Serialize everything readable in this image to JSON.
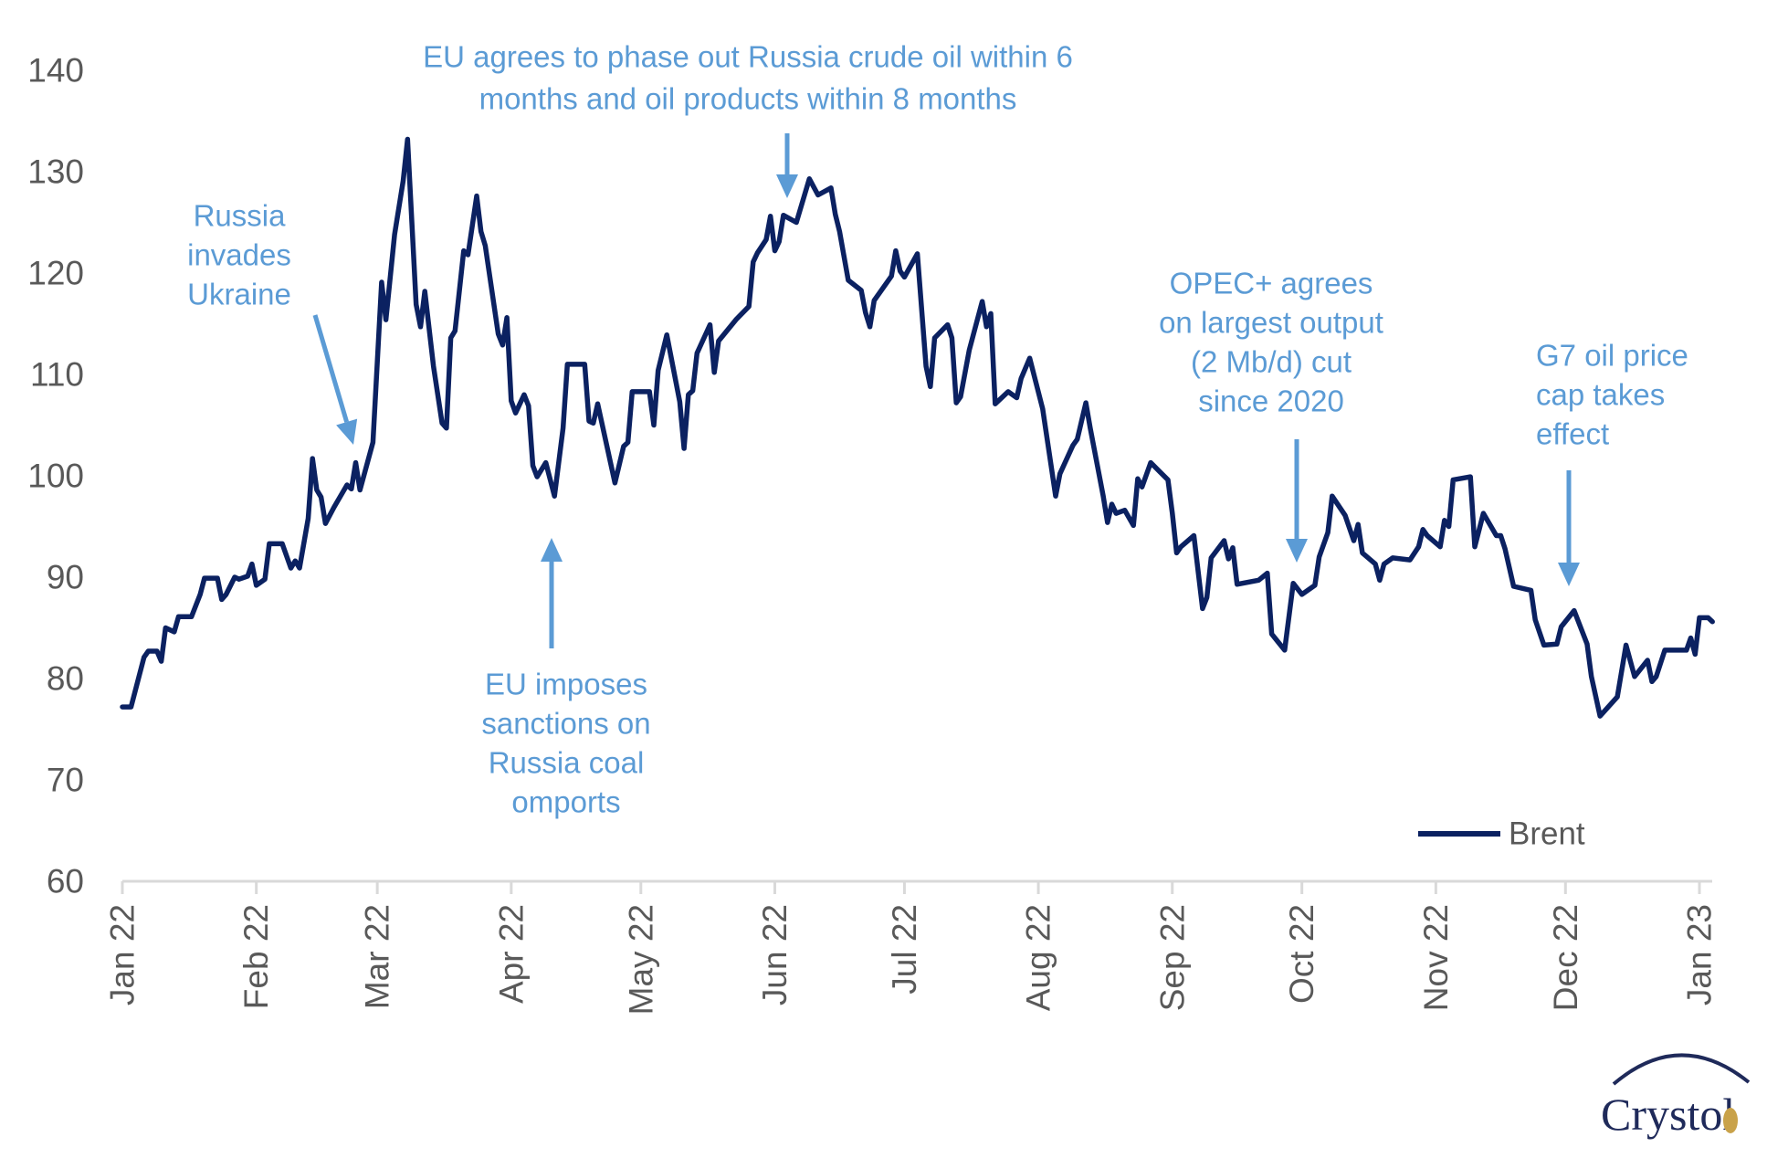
{
  "chart_data": {
    "type": "line",
    "title": "",
    "xlabel": "",
    "ylabel": "",
    "ylim": [
      60,
      140
    ],
    "yticks": [
      "60",
      "70",
      "80",
      "90",
      "100",
      "110",
      "120",
      "130",
      "140"
    ],
    "xlim": [
      "2022-01-01",
      "2023-01-01"
    ],
    "xticks": [
      {
        "date": "2022-01-01",
        "label": "Jan 22"
      },
      {
        "date": "2022-02-01",
        "label": "Feb 22"
      },
      {
        "date": "2022-03-01",
        "label": "Mar 22"
      },
      {
        "date": "2022-04-01",
        "label": "Apr 22"
      },
      {
        "date": "2022-05-01",
        "label": "May 22"
      },
      {
        "date": "2022-06-01",
        "label": "Jun 22"
      },
      {
        "date": "2022-07-01",
        "label": "Jul 22"
      },
      {
        "date": "2022-08-01",
        "label": "Aug 22"
      },
      {
        "date": "2022-09-01",
        "label": "Sep 22"
      },
      {
        "date": "2022-10-01",
        "label": "Oct 22"
      },
      {
        "date": "2022-11-01",
        "label": "Nov 22"
      },
      {
        "date": "2022-12-01",
        "label": "Dec 22"
      },
      {
        "date": "2023-01-01",
        "label": "Jan 23"
      }
    ],
    "grid": false,
    "legend": {
      "placement": "bottom-right",
      "entries": [
        "Brent"
      ]
    },
    "series": [
      {
        "name": "Brent",
        "color": "#0b2161",
        "points": [
          [
            "2022-01-01",
            77.2
          ],
          [
            "2022-01-03",
            77.2
          ],
          [
            "2022-01-06",
            82.1
          ],
          [
            "2022-01-07",
            82.7
          ],
          [
            "2022-01-09",
            82.7
          ],
          [
            "2022-01-10",
            81.7
          ],
          [
            "2022-01-11",
            85.0
          ],
          [
            "2022-01-13",
            84.6
          ],
          [
            "2022-01-14",
            86.1
          ],
          [
            "2022-01-17",
            86.1
          ],
          [
            "2022-01-19",
            88.3
          ],
          [
            "2022-01-20",
            89.9
          ],
          [
            "2022-01-23",
            89.9
          ],
          [
            "2022-01-24",
            87.8
          ],
          [
            "2022-01-25",
            88.3
          ],
          [
            "2022-01-27",
            90.0
          ],
          [
            "2022-01-28",
            89.8
          ],
          [
            "2022-01-30",
            90.1
          ],
          [
            "2022-01-31",
            91.3
          ],
          [
            "2022-02-01",
            89.2
          ],
          [
            "2022-02-03",
            89.8
          ],
          [
            "2022-02-04",
            93.3
          ],
          [
            "2022-02-07",
            93.3
          ],
          [
            "2022-02-09",
            90.9
          ],
          [
            "2022-02-10",
            91.6
          ],
          [
            "2022-02-11",
            90.9
          ],
          [
            "2022-02-13",
            95.8
          ],
          [
            "2022-02-14",
            101.7
          ],
          [
            "2022-02-15",
            98.6
          ],
          [
            "2022-02-16",
            97.9
          ],
          [
            "2022-02-17",
            95.3
          ],
          [
            "2022-02-19",
            96.9
          ],
          [
            "2022-02-22",
            99.1
          ],
          [
            "2022-02-23",
            98.7
          ],
          [
            "2022-02-24",
            101.3
          ],
          [
            "2022-02-25",
            98.6
          ],
          [
            "2022-02-28",
            103.3
          ],
          [
            "2022-03-02",
            119.1
          ],
          [
            "2022-03-03",
            115.4
          ],
          [
            "2022-03-05",
            123.8
          ],
          [
            "2022-03-07",
            129.1
          ],
          [
            "2022-03-08",
            133.2
          ],
          [
            "2022-03-10",
            116.9
          ],
          [
            "2022-03-11",
            114.7
          ],
          [
            "2022-03-12",
            118.2
          ],
          [
            "2022-03-14",
            110.8
          ],
          [
            "2022-03-16",
            105.2
          ],
          [
            "2022-03-17",
            104.7
          ],
          [
            "2022-03-18",
            113.6
          ],
          [
            "2022-03-19",
            114.3
          ],
          [
            "2022-03-21",
            122.2
          ],
          [
            "2022-03-22",
            121.8
          ],
          [
            "2022-03-24",
            127.6
          ],
          [
            "2022-03-25",
            124.1
          ],
          [
            "2022-03-26",
            122.7
          ],
          [
            "2022-03-29",
            114.0
          ],
          [
            "2022-03-30",
            112.9
          ],
          [
            "2022-03-31",
            115.6
          ],
          [
            "2022-04-01",
            107.4
          ],
          [
            "2022-04-02",
            106.2
          ],
          [
            "2022-04-04",
            108.0
          ],
          [
            "2022-04-05",
            106.9
          ],
          [
            "2022-04-06",
            101.0
          ],
          [
            "2022-04-07",
            99.9
          ],
          [
            "2022-04-09",
            101.3
          ],
          [
            "2022-04-11",
            98.0
          ],
          [
            "2022-04-13",
            104.7
          ],
          [
            "2022-04-14",
            111.0
          ],
          [
            "2022-04-18",
            111.0
          ],
          [
            "2022-04-19",
            105.4
          ],
          [
            "2022-04-20",
            105.2
          ],
          [
            "2022-04-21",
            107.1
          ],
          [
            "2022-04-25",
            99.3
          ],
          [
            "2022-04-27",
            102.9
          ],
          [
            "2022-04-28",
            103.3
          ],
          [
            "2022-04-29",
            108.3
          ],
          [
            "2022-05-03",
            108.3
          ],
          [
            "2022-05-04",
            105.0
          ],
          [
            "2022-05-05",
            110.4
          ],
          [
            "2022-05-07",
            113.9
          ],
          [
            "2022-05-10",
            107.3
          ],
          [
            "2022-05-11",
            102.7
          ],
          [
            "2022-05-12",
            108.0
          ],
          [
            "2022-05-13",
            108.4
          ],
          [
            "2022-05-14",
            112.1
          ],
          [
            "2022-05-17",
            114.9
          ],
          [
            "2022-05-18",
            110.2
          ],
          [
            "2022-05-19",
            113.3
          ],
          [
            "2022-05-23",
            115.4
          ],
          [
            "2022-05-26",
            116.7
          ],
          [
            "2022-05-27",
            121.1
          ],
          [
            "2022-05-28",
            122.0
          ],
          [
            "2022-05-30",
            123.3
          ],
          [
            "2022-05-31",
            125.6
          ],
          [
            "2022-06-01",
            122.2
          ],
          [
            "2022-06-02",
            123.1
          ],
          [
            "2022-06-03",
            125.7
          ],
          [
            "2022-06-06",
            125.0
          ],
          [
            "2022-06-09",
            129.3
          ],
          [
            "2022-06-11",
            127.7
          ],
          [
            "2022-06-14",
            128.4
          ],
          [
            "2022-06-15",
            125.8
          ],
          [
            "2022-06-16",
            124.1
          ],
          [
            "2022-06-18",
            119.3
          ],
          [
            "2022-06-21",
            118.3
          ],
          [
            "2022-06-22",
            116.1
          ],
          [
            "2022-06-23",
            114.7
          ],
          [
            "2022-06-24",
            117.3
          ],
          [
            "2022-06-28",
            119.7
          ],
          [
            "2022-06-29",
            122.2
          ],
          [
            "2022-06-30",
            120.2
          ],
          [
            "2022-07-01",
            119.6
          ],
          [
            "2022-07-04",
            121.9
          ],
          [
            "2022-07-06",
            110.8
          ],
          [
            "2022-07-07",
            108.8
          ],
          [
            "2022-07-08",
            113.6
          ],
          [
            "2022-07-11",
            114.9
          ],
          [
            "2022-07-12",
            113.6
          ],
          [
            "2022-07-13",
            107.2
          ],
          [
            "2022-07-14",
            107.8
          ],
          [
            "2022-07-16",
            112.4
          ],
          [
            "2022-07-19",
            117.2
          ],
          [
            "2022-07-20",
            114.7
          ],
          [
            "2022-07-21",
            116.0
          ],
          [
            "2022-07-22",
            107.1
          ],
          [
            "2022-07-25",
            108.3
          ],
          [
            "2022-07-27",
            107.7
          ],
          [
            "2022-07-28",
            109.6
          ],
          [
            "2022-07-30",
            111.6
          ],
          [
            "2022-08-02",
            106.6
          ],
          [
            "2022-08-05",
            98.0
          ],
          [
            "2022-08-06",
            100.2
          ],
          [
            "2022-08-09",
            103.0
          ],
          [
            "2022-08-10",
            103.6
          ],
          [
            "2022-08-12",
            107.2
          ],
          [
            "2022-08-13",
            104.7
          ],
          [
            "2022-08-16",
            98.0
          ],
          [
            "2022-08-17",
            95.4
          ],
          [
            "2022-08-18",
            97.2
          ],
          [
            "2022-08-19",
            96.3
          ],
          [
            "2022-08-21",
            96.6
          ],
          [
            "2022-08-23",
            95.1
          ],
          [
            "2022-08-24",
            99.7
          ],
          [
            "2022-08-25",
            98.9
          ],
          [
            "2022-08-27",
            101.3
          ],
          [
            "2022-08-31",
            99.6
          ],
          [
            "2022-09-01",
            96.3
          ],
          [
            "2022-09-02",
            92.4
          ],
          [
            "2022-09-03",
            93.0
          ],
          [
            "2022-09-06",
            94.1
          ],
          [
            "2022-09-08",
            86.9
          ],
          [
            "2022-09-09",
            88.0
          ],
          [
            "2022-09-10",
            91.9
          ],
          [
            "2022-09-13",
            93.6
          ],
          [
            "2022-09-14",
            91.8
          ],
          [
            "2022-09-15",
            92.9
          ],
          [
            "2022-09-16",
            89.3
          ],
          [
            "2022-09-21",
            89.7
          ],
          [
            "2022-09-23",
            90.4
          ],
          [
            "2022-09-24",
            84.4
          ],
          [
            "2022-09-27",
            82.8
          ],
          [
            "2022-09-29",
            89.4
          ],
          [
            "2022-10-01",
            88.3
          ],
          [
            "2022-10-04",
            89.2
          ],
          [
            "2022-10-05",
            92.0
          ],
          [
            "2022-10-07",
            94.4
          ],
          [
            "2022-10-08",
            98.0
          ],
          [
            "2022-10-11",
            96.1
          ],
          [
            "2022-10-13",
            93.6
          ],
          [
            "2022-10-14",
            95.2
          ],
          [
            "2022-10-15",
            92.4
          ],
          [
            "2022-10-18",
            91.3
          ],
          [
            "2022-10-19",
            89.7
          ],
          [
            "2022-10-20",
            91.3
          ],
          [
            "2022-10-22",
            91.9
          ],
          [
            "2022-10-26",
            91.7
          ],
          [
            "2022-10-28",
            93.0
          ],
          [
            "2022-10-29",
            94.7
          ],
          [
            "2022-10-30",
            94.1
          ],
          [
            "2022-11-02",
            93.0
          ],
          [
            "2022-11-03",
            95.6
          ],
          [
            "2022-11-04",
            95.0
          ],
          [
            "2022-11-05",
            99.6
          ],
          [
            "2022-11-09",
            99.9
          ],
          [
            "2022-11-10",
            93.0
          ],
          [
            "2022-11-12",
            96.3
          ],
          [
            "2022-11-15",
            94.1
          ],
          [
            "2022-11-16",
            94.1
          ],
          [
            "2022-11-17",
            92.8
          ],
          [
            "2022-11-19",
            89.1
          ],
          [
            "2022-11-23",
            88.7
          ],
          [
            "2022-11-24",
            85.8
          ],
          [
            "2022-11-26",
            83.3
          ],
          [
            "2022-11-29",
            83.4
          ],
          [
            "2022-11-30",
            85.1
          ],
          [
            "2022-12-03",
            86.7
          ],
          [
            "2022-12-06",
            83.4
          ],
          [
            "2022-12-07",
            80.2
          ],
          [
            "2022-12-09",
            76.3
          ],
          [
            "2022-12-13",
            78.2
          ],
          [
            "2022-12-15",
            83.3
          ],
          [
            "2022-12-17",
            80.2
          ],
          [
            "2022-12-20",
            81.8
          ],
          [
            "2022-12-21",
            79.7
          ],
          [
            "2022-12-22",
            80.2
          ],
          [
            "2022-12-24",
            82.8
          ],
          [
            "2022-12-29",
            82.8
          ],
          [
            "2022-12-30",
            84.0
          ],
          [
            "2022-12-31",
            82.4
          ],
          [
            "2023-01-01",
            86.0
          ],
          [
            "2023-01-03",
            86.0
          ],
          [
            "2023-01-04",
            85.6
          ]
        ]
      }
    ],
    "annotations": [
      {
        "id": "russia-invades",
        "lines": [
          "Russia",
          "invades",
          "Ukraine"
        ],
        "arrow_to": [
          "2022-02-24",
          100
        ]
      },
      {
        "id": "eu-phase-out",
        "lines": [
          "EU agrees to phase out Russia crude oil within 6",
          "months and oil products within 8 months"
        ],
        "arrow_to": [
          "2022-06-04",
          126
        ]
      },
      {
        "id": "eu-coal",
        "lines": [
          "EU imposes",
          "sanctions on",
          "Russia coal",
          "omports"
        ],
        "arrow_to": [
          "2022-04-10",
          95
        ]
      },
      {
        "id": "opec-cut",
        "lines": [
          "OPEC+ agrees",
          "on largest output",
          "(2 Mb/d) cut",
          "since 2020"
        ],
        "arrow_to": [
          "2022-10-01",
          92
        ]
      },
      {
        "id": "g7-cap",
        "lines": [
          "G7 oil price",
          "cap takes",
          "effect"
        ],
        "arrow_to": [
          "2022-12-01",
          89
        ]
      }
    ],
    "annotation_color": "#5b9bd5"
  },
  "logo": {
    "text": "Crystol",
    "color": "#1f2a5a"
  }
}
